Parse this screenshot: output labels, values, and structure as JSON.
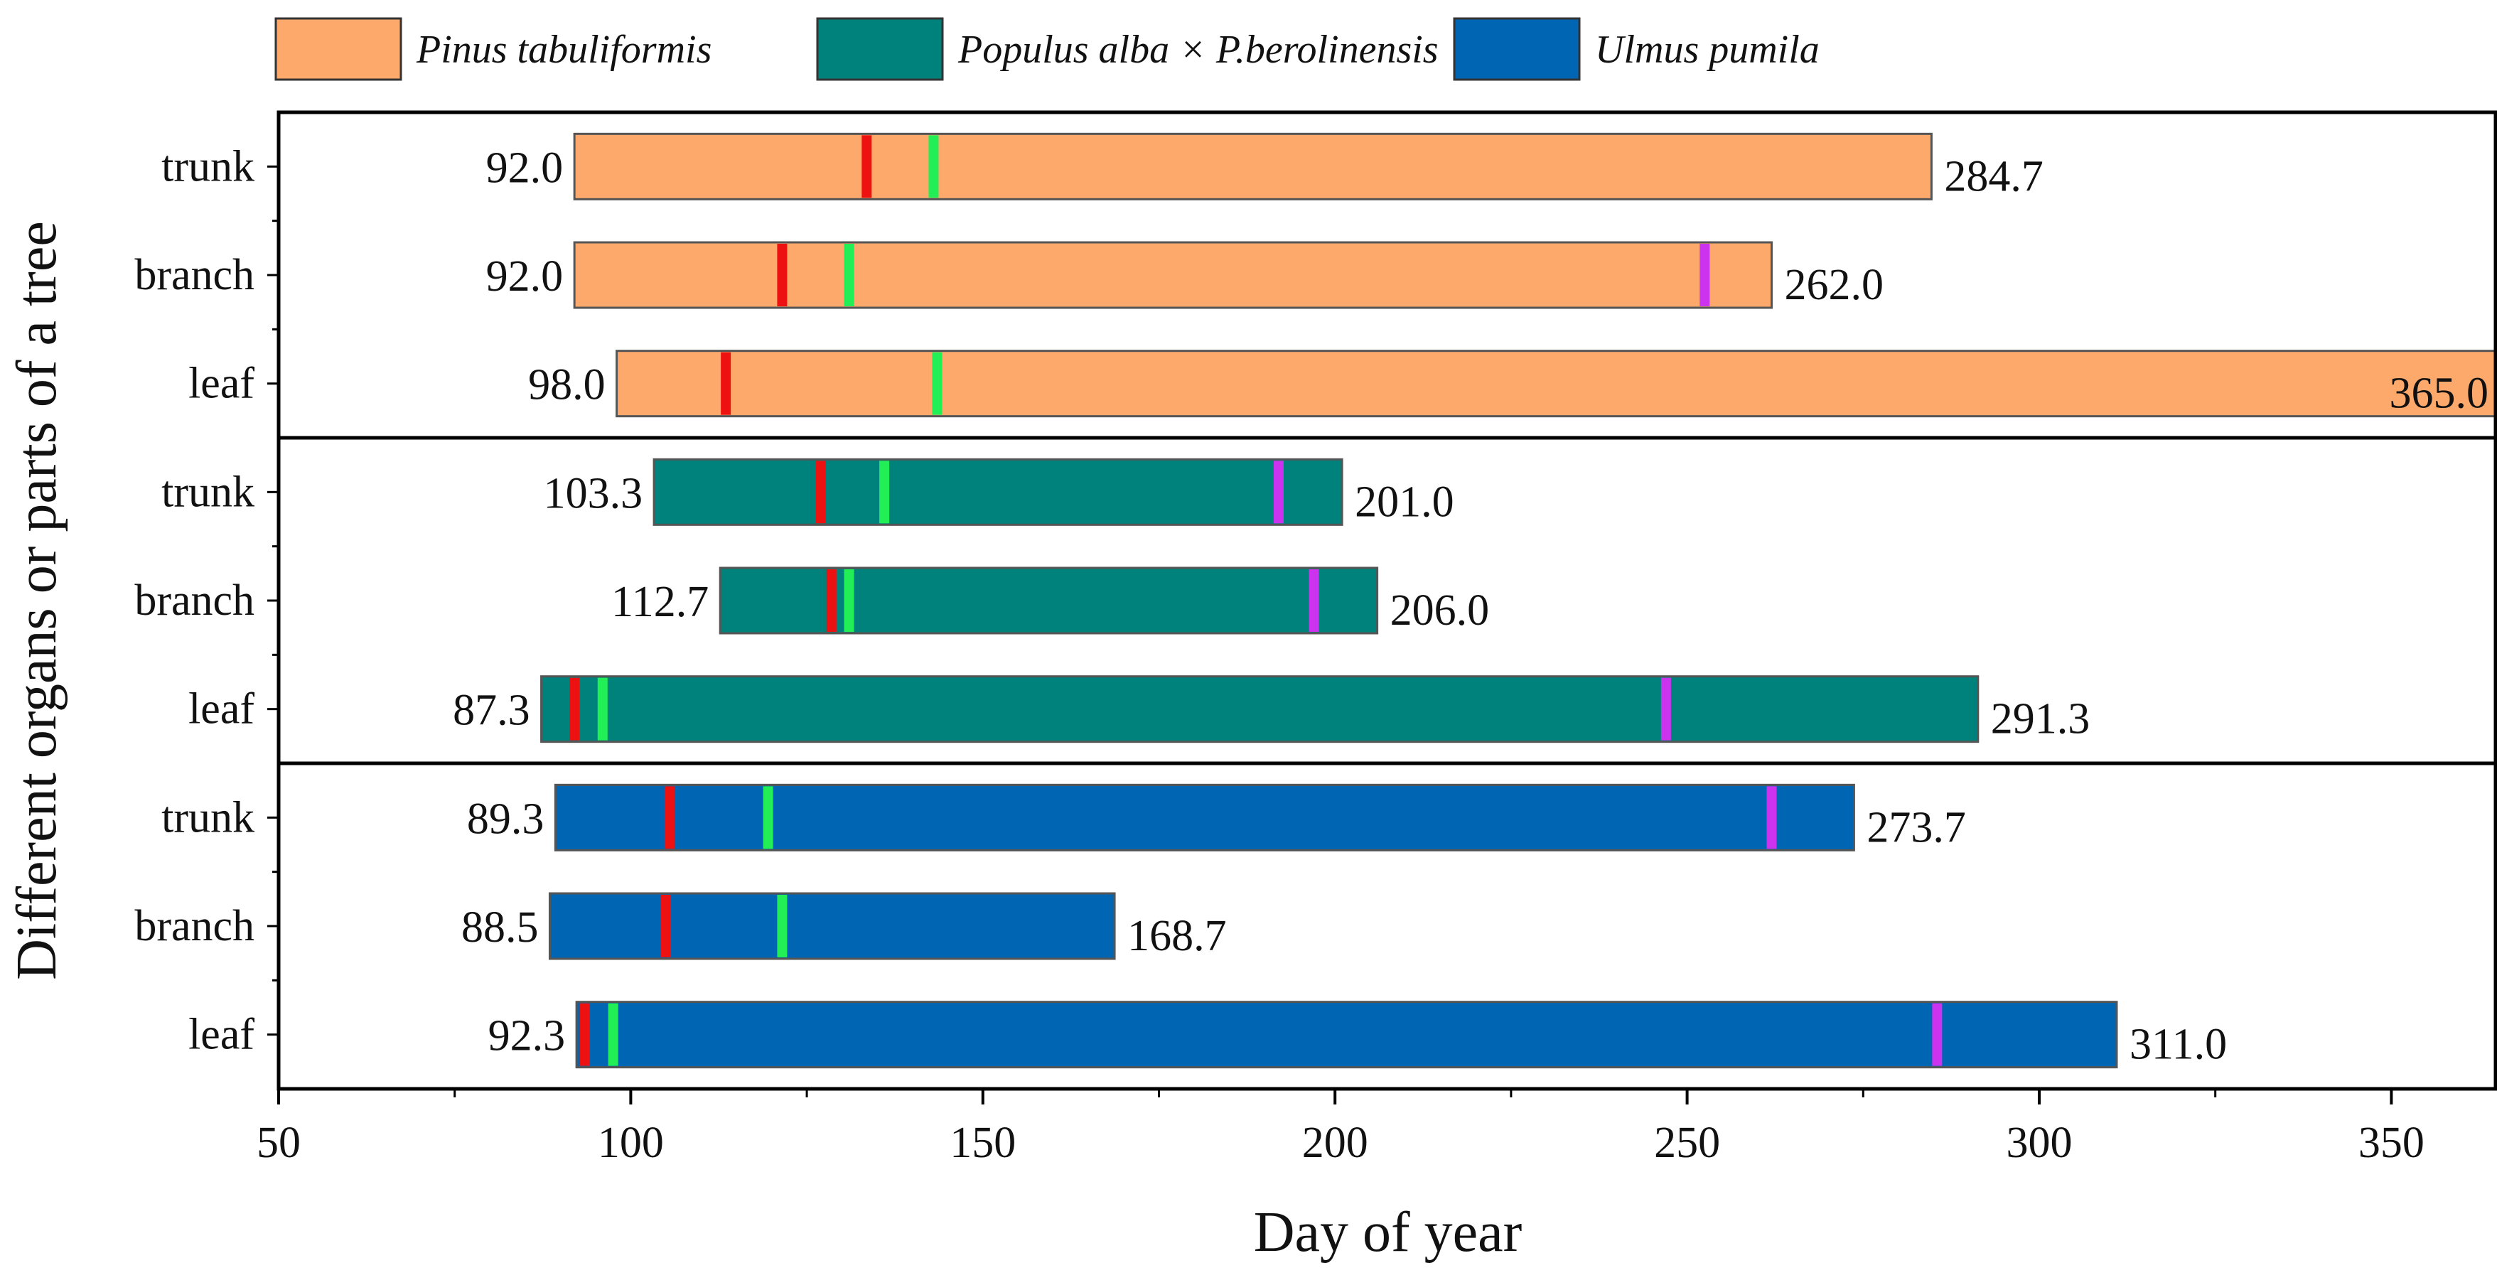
{
  "chart_data": {
    "type": "bar",
    "subtype": "floating-horizontal-range",
    "xlabel": "Day of year",
    "ylabel": "Different organs or parts of a tree",
    "xlim": [
      50,
      365
    ],
    "xticks": [
      50,
      100,
      150,
      200,
      250,
      300,
      350
    ],
    "xtick_labels": [
      "50",
      "100",
      "150",
      "200",
      "250",
      "300",
      "350"
    ],
    "legend": {
      "placement": "top",
      "entries": [
        {
          "label": "Pinus tabuliformis",
          "color": "#FCA96B"
        },
        {
          "label": "Populus alba × P.berolinensis",
          "color": "#00827C"
        },
        {
          "label": "Ulmus pumila",
          "color": "#0066B3"
        }
      ]
    },
    "marker_colors": {
      "red": "#EE1111",
      "green": "#22EE55",
      "magenta": "#CC33EE"
    },
    "groups": [
      {
        "species": "Pinus tabuliformis",
        "color": "#FCA96B",
        "bars": [
          {
            "category": "trunk",
            "start": 92.0,
            "end": 284.7,
            "start_label": "92.0",
            "end_label": "284.7",
            "markers": {
              "red": 133.5,
              "green": 143.0,
              "magenta": null
            }
          },
          {
            "category": "branch",
            "start": 92.0,
            "end": 262.0,
            "start_label": "92.0",
            "end_label": "262.0",
            "markers": {
              "red": 121.5,
              "green": 131.0,
              "magenta": 252.5
            }
          },
          {
            "category": "leaf",
            "start": 98.0,
            "end": 365.0,
            "start_label": "98.0",
            "end_label": "365.0",
            "markers": {
              "red": 113.5,
              "green": 143.5,
              "magenta": null
            }
          }
        ]
      },
      {
        "species": "Populus alba × P.berolinensis",
        "color": "#00827C",
        "bars": [
          {
            "category": "trunk",
            "start": 103.3,
            "end": 201.0,
            "start_label": "103.3",
            "end_label": "201.0",
            "markers": {
              "red": 127.0,
              "green": 136.0,
              "magenta": 192.0
            }
          },
          {
            "category": "branch",
            "start": 112.7,
            "end": 206.0,
            "start_label": "112.7",
            "end_label": "206.0",
            "markers": {
              "red": 128.5,
              "green": 131.0,
              "magenta": 197.0
            }
          },
          {
            "category": "leaf",
            "start": 87.3,
            "end": 291.3,
            "start_label": "87.3",
            "end_label": "291.3",
            "markers": {
              "red": 92.0,
              "green": 96.0,
              "magenta": 247.0
            }
          }
        ]
      },
      {
        "species": "Ulmus pumila",
        "color": "#0066B3",
        "bars": [
          {
            "category": "trunk",
            "start": 89.3,
            "end": 273.7,
            "start_label": "89.3",
            "end_label": "273.7",
            "markers": {
              "red": 105.5,
              "green": 119.5,
              "magenta": 262.0
            }
          },
          {
            "category": "branch",
            "start": 88.5,
            "end": 168.7,
            "start_label": "88.5",
            "end_label": "168.7",
            "markers": {
              "red": 105.0,
              "green": 121.5,
              "magenta": null
            }
          },
          {
            "category": "leaf",
            "start": 92.3,
            "end": 311.0,
            "start_label": "92.3",
            "end_label": "311.0",
            "markers": {
              "red": 93.5,
              "green": 97.5,
              "magenta": 285.5
            }
          }
        ]
      }
    ]
  }
}
